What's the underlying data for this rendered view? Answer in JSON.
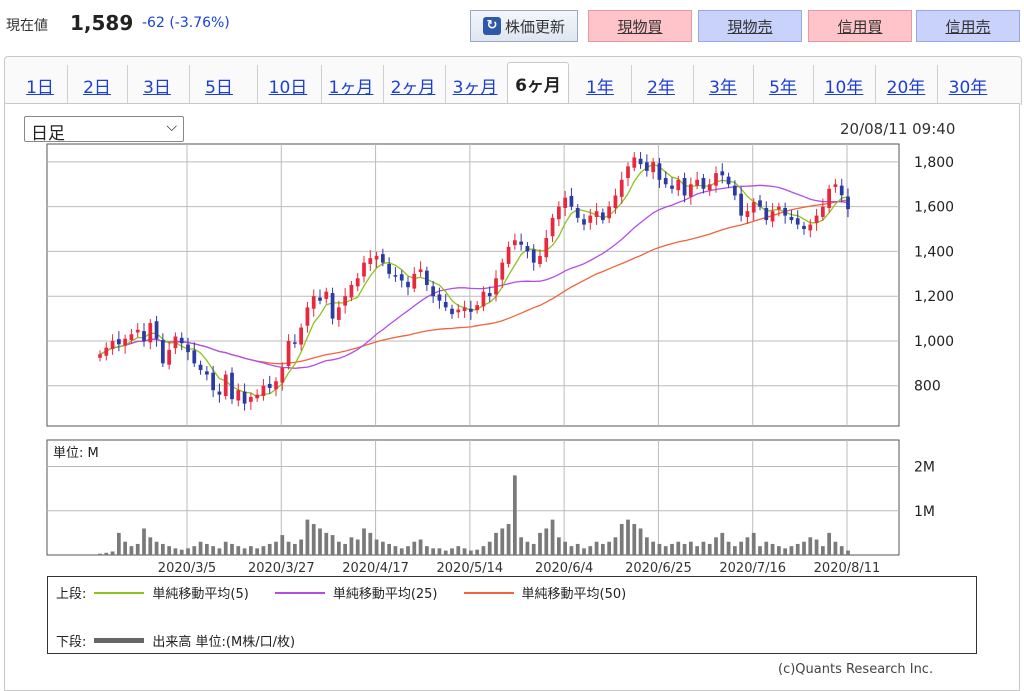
{
  "header": {
    "price_label": "現在値",
    "price_value": "1,589",
    "price_change": "-62 (-3.76%)",
    "refresh_label": "株価更新",
    "trade_buttons": [
      "現物買",
      "現物売",
      "信用買",
      "信用売"
    ]
  },
  "tabs": [
    "1日",
    "2日",
    "3日",
    "5日",
    "10日",
    "1ヶ月",
    "2ヶ月",
    "3ヶ月",
    "6ヶ月",
    "1年",
    "2年",
    "3年",
    "5年",
    "10年",
    "20年",
    "30年"
  ],
  "active_tab": "6ヶ月",
  "chart_controls": {
    "period_select": "日足",
    "timestamp": "20/08/11 09:40"
  },
  "chart_data": {
    "type": "candlestick",
    "price_axis": {
      "ticks": [
        "1,800",
        "1,600",
        "1,400",
        "1,200",
        "1,000",
        "800"
      ],
      "ylim": [
        620,
        1880
      ]
    },
    "volume_axis": {
      "unit_label": "単位: M",
      "ticks": [
        "2M",
        "1M"
      ],
      "ylim": [
        0,
        2.6
      ]
    },
    "x_ticks": [
      "2020/3/5",
      "2020/3/27",
      "2020/4/17",
      "2020/5/14",
      "2020/6/4",
      "2020/6/25",
      "2020/7/16",
      "2020/8/11"
    ],
    "grid": true,
    "colors": {
      "up": "#e8283c",
      "down": "#2c3aa3",
      "ma5": "#8ec21f",
      "ma25": "#b24ee8",
      "ma50": "#f0643c",
      "volume": "#7a7a7a"
    },
    "closes": [
      940,
      970,
      1000,
      985,
      1010,
      1030,
      1050,
      1000,
      1080,
      1010,
      900,
      960,
      1020,
      990,
      950,
      900,
      870,
      850,
      780,
      760,
      850,
      740,
      780,
      720,
      750,
      760,
      800,
      790,
      820,
      880,
      1000,
      990,
      1060,
      1150,
      1200,
      1180,
      1220,
      1100,
      1150,
      1200,
      1250,
      1280,
      1350,
      1370,
      1380,
      1350,
      1300,
      1290,
      1270,
      1240,
      1300,
      1320,
      1250,
      1200,
      1180,
      1150,
      1120,
      1140,
      1150,
      1130,
      1160,
      1220,
      1200,
      1280,
      1350,
      1420,
      1450,
      1430,
      1400,
      1350,
      1380,
      1460,
      1550,
      1600,
      1640,
      1600,
      1550,
      1520,
      1560,
      1580,
      1540,
      1600,
      1650,
      1720,
      1780,
      1820,
      1790,
      1760,
      1800,
      1720,
      1700,
      1680,
      1720,
      1650,
      1700,
      1720,
      1680,
      1700,
      1750,
      1740,
      1700,
      1650,
      1560,
      1580,
      1620,
      1600,
      1540,
      1580,
      1600,
      1560,
      1540,
      1520,
      1500,
      1520,
      1560,
      1600,
      1680,
      1700,
      1651,
      1589
    ],
    "volumes": [
      0.03,
      0.05,
      0.08,
      0.5,
      0.3,
      0.2,
      0.25,
      0.6,
      0.4,
      0.3,
      0.25,
      0.2,
      0.15,
      0.12,
      0.15,
      0.2,
      0.3,
      0.25,
      0.2,
      0.15,
      0.3,
      0.25,
      0.2,
      0.15,
      0.2,
      0.15,
      0.2,
      0.25,
      0.3,
      0.45,
      0.3,
      0.25,
      0.35,
      0.8,
      0.7,
      0.6,
      0.5,
      0.45,
      0.3,
      0.25,
      0.4,
      0.35,
      0.6,
      0.5,
      0.35,
      0.3,
      0.25,
      0.2,
      0.15,
      0.2,
      0.3,
      0.35,
      0.2,
      0.15,
      0.15,
      0.1,
      0.15,
      0.2,
      0.15,
      0.1,
      0.12,
      0.2,
      0.3,
      0.5,
      0.6,
      0.7,
      1.8,
      0.4,
      0.3,
      0.25,
      0.5,
      0.6,
      0.8,
      0.4,
      0.3,
      0.2,
      0.25,
      0.15,
      0.2,
      0.3,
      0.25,
      0.3,
      0.4,
      0.7,
      0.8,
      0.7,
      0.6,
      0.4,
      0.3,
      0.25,
      0.2,
      0.25,
      0.3,
      0.25,
      0.3,
      0.2,
      0.3,
      0.25,
      0.4,
      0.5,
      0.3,
      0.2,
      0.3,
      0.4,
      0.5,
      0.2,
      0.3,
      0.25,
      0.2,
      0.15,
      0.2,
      0.25,
      0.3,
      0.4,
      0.35,
      0.2,
      0.5,
      0.3,
      0.2,
      0.1
    ]
  },
  "legend": {
    "upper_label": "上段:",
    "ma5_label": "単純移動平均(5)",
    "ma25_label": "単純移動平均(25)",
    "ma50_label": "単純移動平均(50)",
    "lower_label": "下段:",
    "volume_label": "出来高 単位:(M株/口/枚)"
  },
  "credit": "(c)Quants Research Inc."
}
